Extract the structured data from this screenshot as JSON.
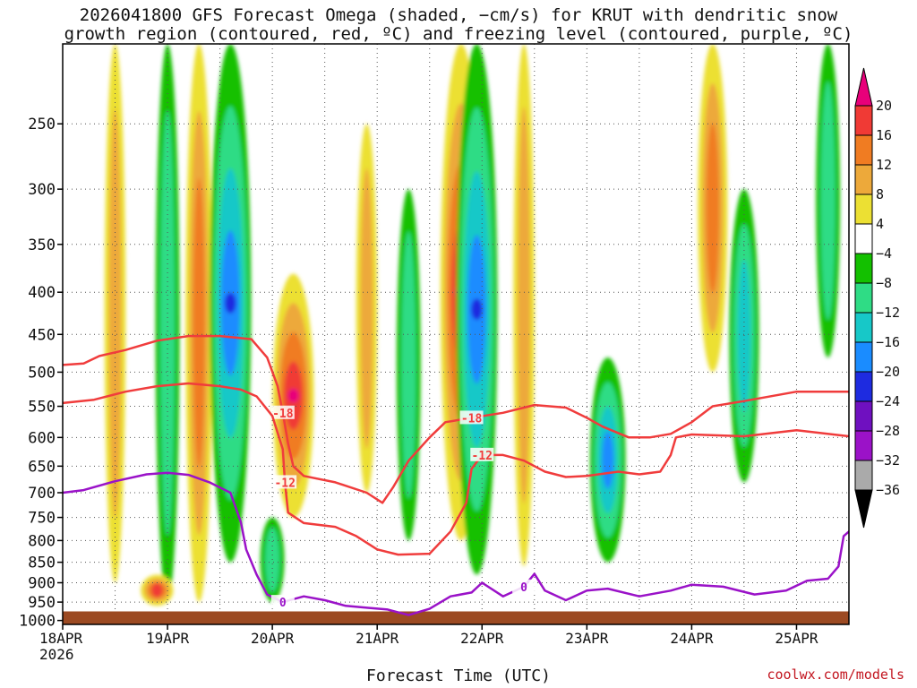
{
  "title_line1": "2026041800 GFS Forecast Omega (shaded, −cm/s) for KRUT with dendritic snow",
  "title_line2": "growth region (contoured, red, ºC) and freezing level (contoured, purple, ºC)",
  "credit": "coolwx.com/models",
  "chart_data": {
    "type": "heatmap",
    "title": "2026041800 GFS Forecast Omega (shaded, −cm/s) for KRUT with dendritic snow growth region (contoured, red, ºC) and freezing level (contoured, purple, ºC)",
    "xlabel": "Forecast Time (UTC)",
    "ylabel": "",
    "x_ticks": [
      "18APR",
      "19APR",
      "20APR",
      "21APR",
      "22APR",
      "23APR",
      "24APR",
      "25APR"
    ],
    "x_year": "2026",
    "x_range_days": [
      0,
      7.5
    ],
    "y_ticks": [
      250,
      300,
      350,
      400,
      450,
      500,
      550,
      600,
      650,
      700,
      750,
      800,
      850,
      900,
      950,
      1000
    ],
    "y_range_hPa": [
      1000,
      200
    ],
    "y_scale": "log-pressure",
    "grid": true,
    "colorbar": {
      "levels": [
        "20",
        "16",
        "12",
        "8",
        "4",
        "−4",
        "−8",
        "−12",
        "−16",
        "−20",
        "−24",
        "−28",
        "−32",
        "−36"
      ],
      "colors": [
        "#e8007a",
        "#f03a35",
        "#f07c22",
        "#eda93a",
        "#ece033",
        "#ffffff",
        "#13c000",
        "#2fdc85",
        "#17c8c8",
        "#1a8cff",
        "#1e2be0",
        "#6f10c0",
        "#9b12c8",
        "#aaaaaa",
        "#000000"
      ]
    },
    "contours_red": [
      {
        "label": "-18",
        "points": [
          [
            0,
            490
          ],
          [
            0.2,
            488
          ],
          [
            0.35,
            478
          ],
          [
            0.6,
            470
          ],
          [
            0.9,
            458
          ],
          [
            1.2,
            452
          ],
          [
            1.5,
            452
          ],
          [
            1.8,
            456
          ],
          [
            1.95,
            480
          ],
          [
            2.05,
            520
          ],
          [
            2.1,
            560
          ],
          [
            2.15,
            610
          ],
          [
            2.2,
            650
          ],
          [
            2.3,
            668
          ],
          [
            2.6,
            680
          ],
          [
            2.9,
            700
          ],
          [
            3.05,
            720
          ],
          [
            3.15,
            690
          ],
          [
            3.3,
            640
          ],
          [
            3.5,
            600
          ],
          [
            3.65,
            575
          ],
          [
            3.9,
            568
          ],
          [
            4.2,
            560
          ],
          [
            4.5,
            548
          ],
          [
            4.8,
            552
          ],
          [
            5.0,
            568
          ],
          [
            5.15,
            582
          ],
          [
            5.4,
            600
          ],
          [
            5.6,
            600
          ],
          [
            5.8,
            594
          ],
          [
            6.0,
            575
          ],
          [
            6.2,
            550
          ],
          [
            6.5,
            542
          ],
          [
            7.0,
            528
          ],
          [
            7.5,
            528
          ]
        ]
      },
      {
        "label": "-12",
        "points": [
          [
            0,
            545
          ],
          [
            0.3,
            540
          ],
          [
            0.6,
            528
          ],
          [
            0.9,
            520
          ],
          [
            1.2,
            516
          ],
          [
            1.5,
            520
          ],
          [
            1.7,
            525
          ],
          [
            1.85,
            535
          ],
          [
            2.0,
            565
          ],
          [
            2.1,
            620
          ],
          [
            2.12,
            680
          ],
          [
            2.15,
            740
          ],
          [
            2.3,
            762
          ],
          [
            2.6,
            770
          ],
          [
            2.8,
            790
          ],
          [
            3.0,
            820
          ],
          [
            3.2,
            832
          ],
          [
            3.5,
            830
          ],
          [
            3.7,
            780
          ],
          [
            3.85,
            720
          ],
          [
            3.9,
            655
          ],
          [
            4.0,
            630
          ],
          [
            4.2,
            630
          ],
          [
            4.4,
            640
          ],
          [
            4.6,
            660
          ],
          [
            4.8,
            670
          ],
          [
            5.0,
            668
          ],
          [
            5.3,
            660
          ],
          [
            5.5,
            665
          ],
          [
            5.7,
            660
          ],
          [
            5.8,
            630
          ],
          [
            5.85,
            600
          ],
          [
            6.0,
            595
          ],
          [
            6.5,
            598
          ],
          [
            7.0,
            588
          ],
          [
            7.5,
            598
          ]
        ]
      }
    ],
    "contours_purple": [
      {
        "label": "0",
        "points": [
          [
            0,
            700
          ],
          [
            0.2,
            695
          ],
          [
            0.5,
            678
          ],
          [
            0.8,
            665
          ],
          [
            1.0,
            662
          ],
          [
            1.2,
            666
          ],
          [
            1.4,
            680
          ],
          [
            1.6,
            700
          ],
          [
            1.7,
            760
          ],
          [
            1.75,
            820
          ],
          [
            1.85,
            880
          ],
          [
            1.95,
            930
          ],
          [
            2.1,
            950
          ],
          [
            2.3,
            935
          ],
          [
            2.5,
            945
          ],
          [
            2.7,
            960
          ],
          [
            2.9,
            965
          ],
          [
            3.1,
            970
          ],
          [
            3.3,
            985
          ],
          [
            3.5,
            968
          ],
          [
            3.7,
            935
          ],
          [
            3.9,
            925
          ],
          [
            4.0,
            900
          ],
          [
            4.2,
            935
          ],
          [
            4.4,
            910
          ],
          [
            4.5,
            878
          ],
          [
            4.6,
            920
          ],
          [
            4.8,
            945
          ],
          [
            5.0,
            920
          ],
          [
            5.2,
            915
          ],
          [
            5.5,
            935
          ],
          [
            5.8,
            920
          ],
          [
            6.0,
            905
          ],
          [
            6.3,
            910
          ],
          [
            6.6,
            930
          ],
          [
            6.9,
            920
          ],
          [
            7.1,
            895
          ],
          [
            7.3,
            890
          ],
          [
            7.4,
            860
          ],
          [
            7.45,
            790
          ],
          [
            7.5,
            780
          ]
        ]
      }
    ],
    "omega_features": [
      {
        "day": 0.5,
        "p_top": 200,
        "p_bot": 900,
        "value": 6
      },
      {
        "day": 1.0,
        "p_top": 200,
        "p_bot": 950,
        "value": -8
      },
      {
        "day": 1.3,
        "p_top": 200,
        "p_bot": 950,
        "value": 10
      },
      {
        "day": 1.6,
        "p_top": 200,
        "p_bot": 850,
        "value": -20
      },
      {
        "day": 2.2,
        "p_top": 380,
        "p_bot": 750,
        "value": 20
      },
      {
        "day": 2.0,
        "p_top": 750,
        "p_bot": 950,
        "value": -8
      },
      {
        "day": 2.9,
        "p_top": 250,
        "p_bot": 700,
        "value": 6
      },
      {
        "day": 3.3,
        "p_top": 300,
        "p_bot": 800,
        "value": -8
      },
      {
        "day": 3.8,
        "p_top": 200,
        "p_bot": 800,
        "value": 20
      },
      {
        "day": 3.95,
        "p_top": 200,
        "p_bot": 880,
        "value": -20
      },
      {
        "day": 4.4,
        "p_top": 200,
        "p_bot": 860,
        "value": 6
      },
      {
        "day": 5.2,
        "p_top": 480,
        "p_bot": 850,
        "value": -16
      },
      {
        "day": 6.2,
        "p_top": 200,
        "p_bot": 500,
        "value": 12
      },
      {
        "day": 6.5,
        "p_top": 300,
        "p_bot": 680,
        "value": -12
      },
      {
        "day": 7.3,
        "p_top": 200,
        "p_bot": 480,
        "value": -8
      },
      {
        "day": 0.9,
        "p_top": 880,
        "p_bot": 960,
        "value": 14
      }
    ],
    "ground_level_hPa": 975
  }
}
